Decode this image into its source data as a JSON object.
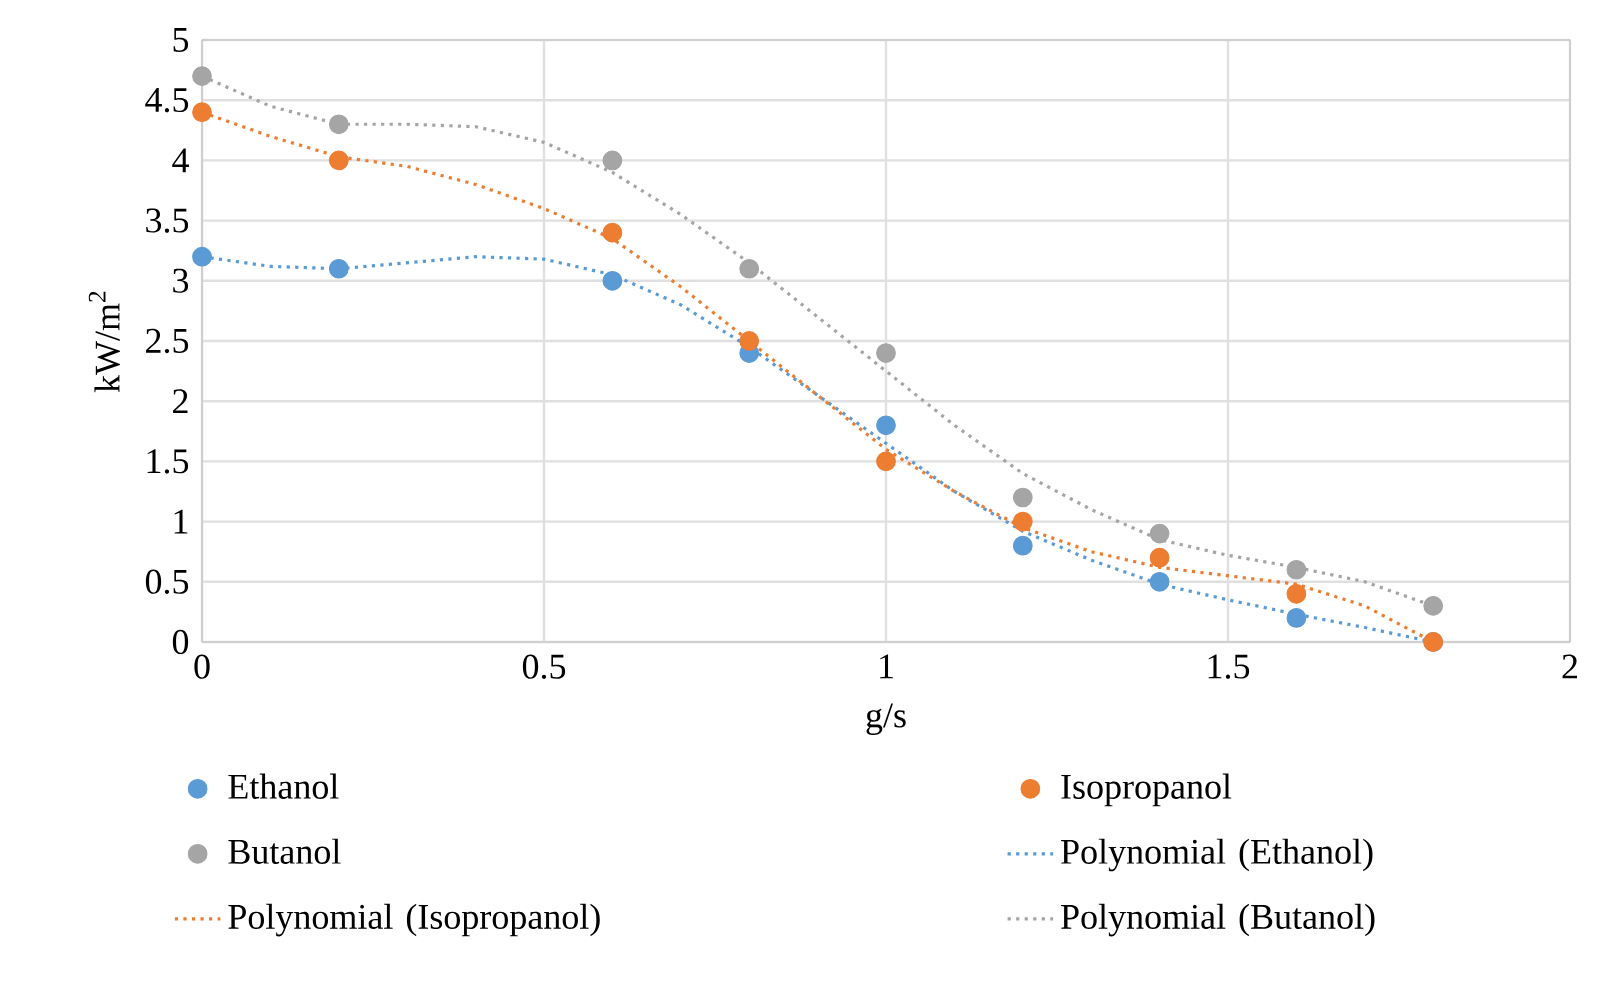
{
  "chart_data": {
    "type": "scatter",
    "xlabel": "g/s",
    "ylabel": "kW/m$^{2}$",
    "x": [
      0,
      0.2,
      0.6,
      0.8,
      1.0,
      1.2,
      1.4,
      1.6,
      1.8
    ],
    "series": [
      {
        "name": "Ethanol",
        "color": "#5b9bd5",
        "marker": "circle",
        "values": [
          3.2,
          3.1,
          3.0,
          2.4,
          1.8,
          0.8,
          0.5,
          0.2,
          0
        ]
      },
      {
        "name": "Isopropanol",
        "color": "#ed7d31",
        "marker": "circle",
        "values": [
          4.4,
          4.0,
          3.4,
          2.5,
          1.5,
          1.0,
          0.7,
          0.4,
          0
        ]
      },
      {
        "name": "Butanol",
        "color": "#a5a5a5",
        "marker": "circle",
        "values": [
          4.7,
          4.3,
          4.0,
          3.1,
          2.4,
          1.2,
          0.9,
          0.6,
          0.3
        ]
      },
      {
        "name": "Polynomial (Ethanol)",
        "color": "#5b9bd5",
        "type": "line",
        "marker": "none",
        "line_style": "dotted",
        "x": [
          0,
          0.1,
          0.2,
          0.3,
          0.4,
          0.5,
          0.6,
          0.7,
          0.8,
          0.9,
          1.0,
          1.1,
          1.2,
          1.3,
          1.4,
          1.5,
          1.6,
          1.7,
          1.8
        ],
        "values": [
          3.2,
          3.12,
          3.1,
          3.15,
          3.2,
          3.18,
          3.05,
          2.8,
          2.45,
          2.05,
          1.65,
          1.25,
          0.92,
          0.68,
          0.48,
          0.35,
          0.23,
          0.12,
          0.0
        ]
      },
      {
        "name": "Polynomial (Isopropanol)",
        "color": "#ed7d31",
        "type": "line",
        "marker": "none",
        "line_style": "dotted",
        "x": [
          0,
          0.1,
          0.2,
          0.3,
          0.4,
          0.5,
          0.6,
          0.7,
          0.8,
          0.9,
          1.0,
          1.1,
          1.2,
          1.3,
          1.4,
          1.5,
          1.6,
          1.7,
          1.8
        ],
        "values": [
          4.4,
          4.2,
          4.03,
          3.95,
          3.8,
          3.6,
          3.35,
          2.95,
          2.5,
          2.05,
          1.6,
          1.25,
          0.95,
          0.75,
          0.62,
          0.55,
          0.48,
          0.3,
          0.0
        ]
      },
      {
        "name": "Polynomial (Butanol)",
        "color": "#a5a5a5",
        "type": "line",
        "marker": "none",
        "line_style": "dotted",
        "x": [
          0,
          0.1,
          0.2,
          0.3,
          0.4,
          0.5,
          0.6,
          0.7,
          0.8,
          0.9,
          1.0,
          1.1,
          1.2,
          1.3,
          1.4,
          1.5,
          1.6,
          1.7,
          1.8
        ],
        "values": [
          4.7,
          4.45,
          4.3,
          4.3,
          4.28,
          4.15,
          3.9,
          3.55,
          3.15,
          2.7,
          2.25,
          1.8,
          1.4,
          1.1,
          0.85,
          0.72,
          0.62,
          0.5,
          0.3
        ]
      }
    ],
    "xlim": [
      0,
      2
    ],
    "ylim": [
      0,
      5
    ],
    "xticks": [
      0,
      0.5,
      1,
      1.5,
      2
    ],
    "yticks": [
      0,
      0.5,
      1,
      1.5,
      2,
      2.5,
      3,
      3.5,
      4,
      4.5,
      5
    ],
    "grid": true,
    "legend": "bottom"
  }
}
